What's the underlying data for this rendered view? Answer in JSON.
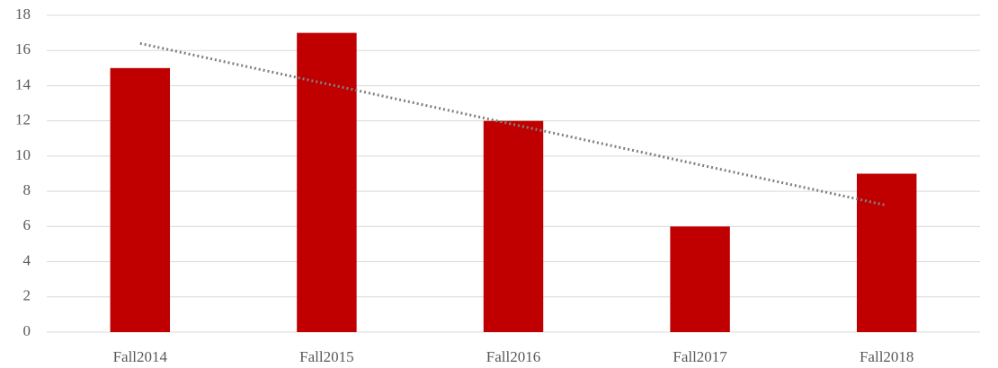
{
  "chart_data": {
    "type": "bar",
    "categories": [
      "Fall2014",
      "Fall2015",
      "Fall2016",
      "Fall2017",
      "Fall2018"
    ],
    "values": [
      15,
      17,
      12,
      6,
      9
    ],
    "color": "#c00000",
    "ylim": [
      0,
      18
    ],
    "yticks": [
      0,
      2,
      4,
      6,
      8,
      10,
      12,
      14,
      16,
      18
    ],
    "grid": true,
    "trendline": "linear"
  }
}
